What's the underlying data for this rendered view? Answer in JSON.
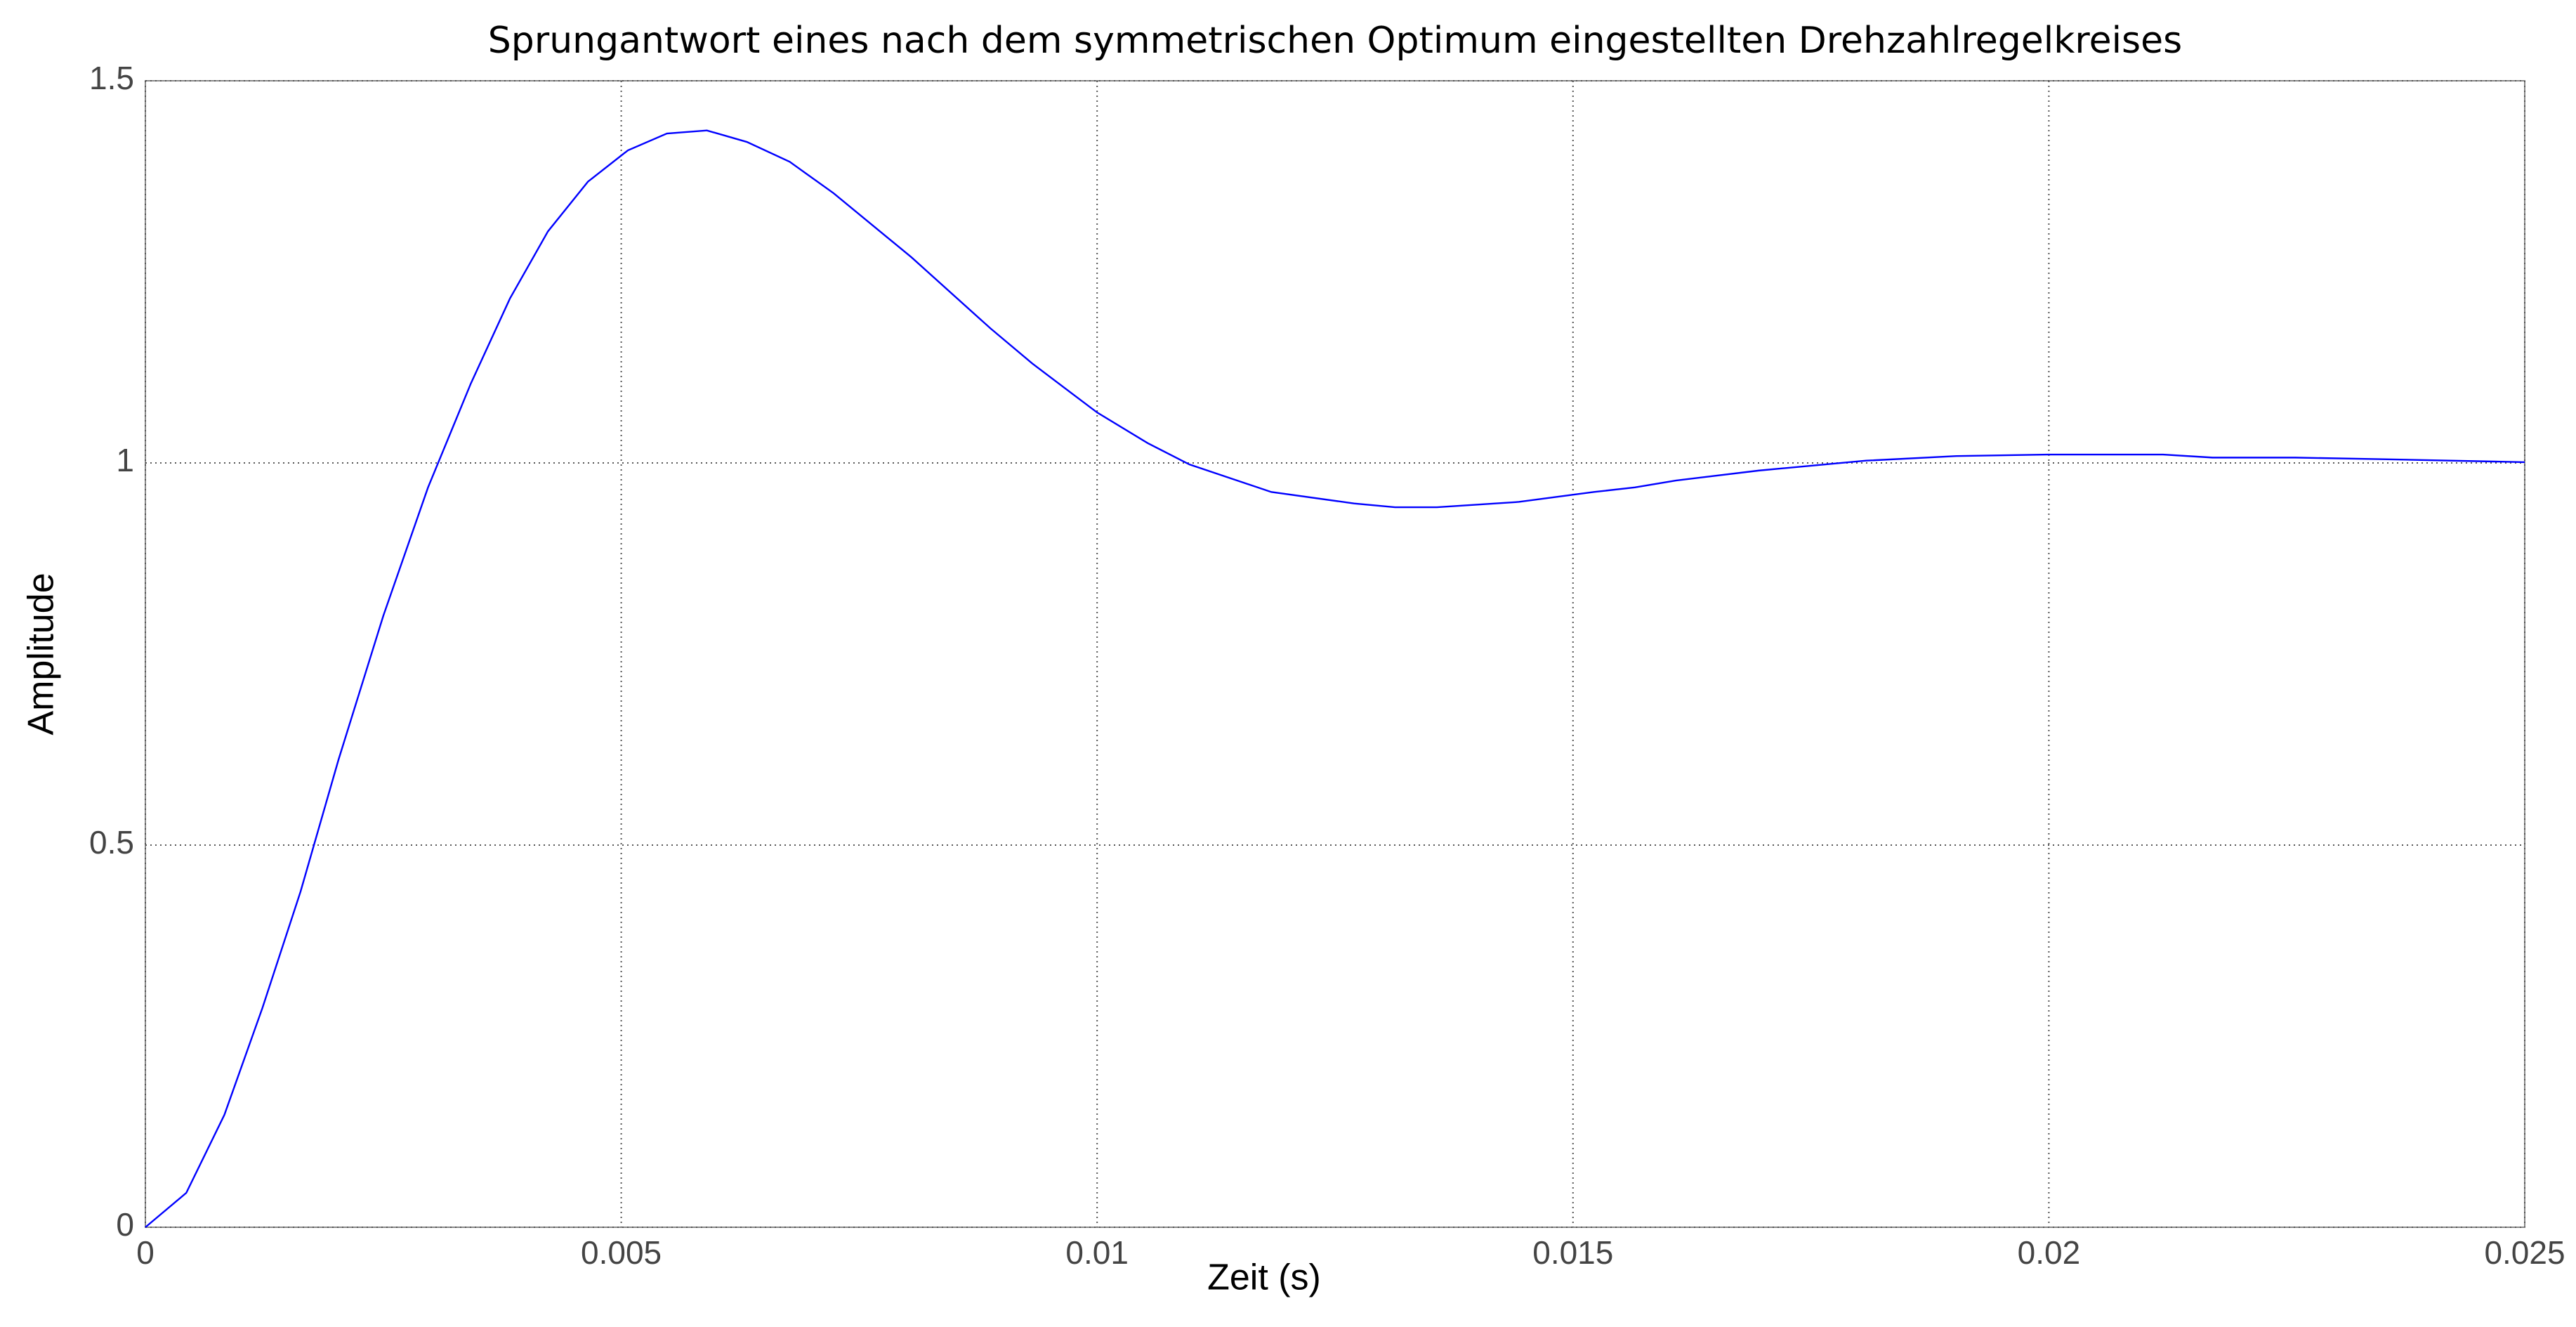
{
  "chart_data": {
    "type": "line",
    "title": "Sprungantwort eines nach dem symmetrischen Optimum eingestellten  Drehzahlregelkreises",
    "x_label": "Zeit (s)",
    "y_label": "Amplitude",
    "x": [
      0,
      0.00043,
      0.00083,
      0.00123,
      0.00163,
      0.00203,
      0.0025,
      0.00297,
      0.00342,
      0.00383,
      0.00423,
      0.00465,
      0.00507,
      0.00548,
      0.0059,
      0.00632,
      0.00677,
      0.00723,
      0.00805,
      0.00888,
      0.00932,
      0.01,
      0.01053,
      0.01097,
      0.01183,
      0.0127,
      0.01313,
      0.01357,
      0.01443,
      0.01522,
      0.01565,
      0.01608,
      0.01695,
      0.01808,
      0.01903,
      0.01999,
      0.0212,
      0.02172,
      0.02259,
      0.02346,
      0.025
    ],
    "series": [
      {
        "color": "#0000ff",
        "values": [
          0,
          0.045,
          0.147,
          0.287,
          0.439,
          0.612,
          0.8,
          0.968,
          1.104,
          1.215,
          1.303,
          1.368,
          1.409,
          1.431,
          1.435,
          1.42,
          1.394,
          1.353,
          1.269,
          1.176,
          1.13,
          1.066,
          1.026,
          0.998,
          0.962,
          0.947,
          0.942,
          0.942,
          0.949,
          0.962,
          0.968,
          0.977,
          0.99,
          1.003,
          1.009,
          1.011,
          1.011,
          1.007,
          1.007,
          1.005,
          1.001
        ]
      }
    ],
    "xlim": [
      0,
      0.025
    ],
    "xticks": [
      0,
      0.005,
      0.01,
      0.015,
      0.02,
      0.025
    ],
    "ylim": [
      0,
      1.5
    ],
    "yticks": [
      0,
      0.5,
      1,
      1.5
    ],
    "grid": true
  }
}
